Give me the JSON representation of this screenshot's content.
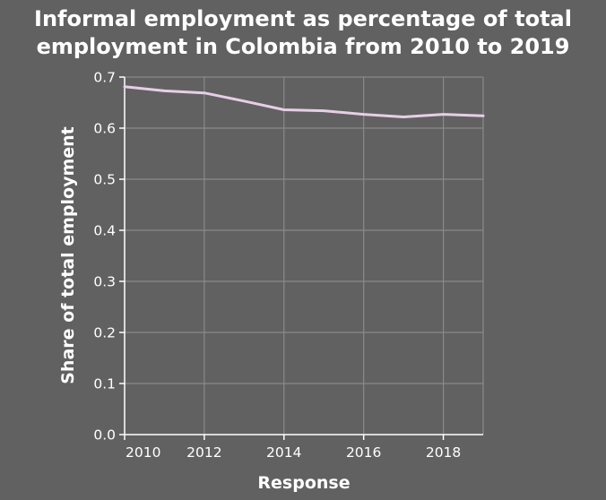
{
  "chart_data": {
    "type": "line",
    "title_lines": [
      "Informal employment as percentage of total",
      "employment in Colombia from 2010 to 2019"
    ],
    "xlabel": "Response",
    "ylabel": "Share of total employment",
    "x": [
      2010,
      2011,
      2012,
      2013,
      2014,
      2015,
      2016,
      2017,
      2018,
      2019
    ],
    "series": [
      {
        "values": [
          0.681,
          0.673,
          0.669,
          0.653,
          0.636,
          0.634,
          0.627,
          0.622,
          0.627,
          0.624
        ]
      }
    ],
    "xlim": [
      2010,
      2019
    ],
    "ylim": [
      0,
      0.7
    ],
    "xticks": [
      2010,
      2012,
      2014,
      2016,
      2018
    ],
    "xtick_labels": [
      "2010",
      "2012",
      "2014",
      "2016",
      "2018"
    ],
    "yticks": [
      0,
      0.1,
      0.2,
      0.3,
      0.4,
      0.5,
      0.6,
      0.7
    ],
    "ytick_labels": [
      "0.0",
      "0.1",
      "0.2",
      "0.3",
      "0.4",
      "0.5",
      "0.6",
      "0.7"
    ],
    "grid": true,
    "colors": {
      "line": "#e6cfe6",
      "background": "#616161",
      "grid": "#8a8a8a",
      "text": "#ffffff"
    }
  }
}
